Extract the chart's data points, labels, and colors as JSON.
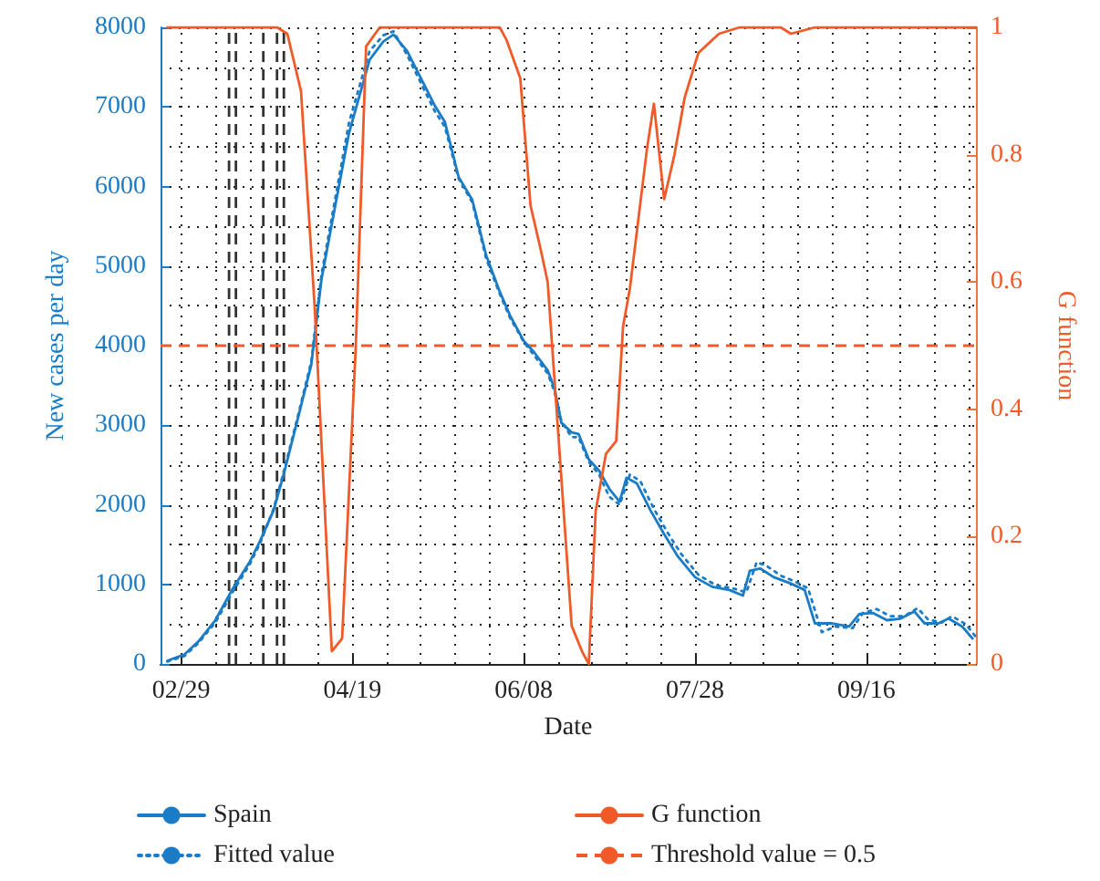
{
  "chart_data": {
    "type": "line",
    "xlabel": "Date",
    "ylabel": "New cases per day",
    "y2label": "G function",
    "xlim": [
      "--02-23",
      "--10-18"
    ],
    "xticks": [
      {
        "value": "--02-29",
        "label": "02/29"
      },
      {
        "value": "--04-19",
        "label": "04/19"
      },
      {
        "value": "--06-08",
        "label": "06/08"
      },
      {
        "value": "--07-28",
        "label": "07/28"
      },
      {
        "value": "--09-16",
        "label": "09/16"
      }
    ],
    "ylim": [
      0,
      8000
    ],
    "yticks": [
      0,
      1000,
      2000,
      3000,
      4000,
      5000,
      6000,
      7000,
      8000
    ],
    "y2lim": [
      0,
      1
    ],
    "y2ticks": [
      0,
      0.2,
      0.4,
      0.6,
      0.8,
      1
    ],
    "grid": true,
    "legend": "bottom",
    "marker": "none",
    "series": [
      {
        "name": "Spain",
        "color": "#1a7cc7",
        "line_style": "solid",
        "x": [
          "--02-25",
          "--03-01",
          "--03-05",
          "--03-10",
          "--03-15",
          "--03-20",
          "--03-23",
          "--03-27",
          "--03-30",
          "--04-03",
          "--04-07",
          "--04-10",
          "--04-14",
          "--04-18",
          "--04-21",
          "--04-24",
          "--04-28",
          "--05-01",
          "--05-05",
          "--05-09",
          "--05-13",
          "--05-16",
          "--05-20",
          "--05-24",
          "--05-28",
          "--06-01",
          "--06-04",
          "--06-08",
          "--06-11",
          "--06-15",
          "--06-17",
          "--06-19",
          "--06-22",
          "--06-24",
          "--06-27",
          "--06-30",
          "--07-03",
          "--07-06",
          "--07-08",
          "--07-11",
          "--07-15",
          "--07-19",
          "--07-23",
          "--07-28",
          "--08-02",
          "--08-07",
          "--08-11",
          "--08-13",
          "--08-16",
          "--08-20",
          "--08-25",
          "--08-29",
          "--09-01",
          "--09-06",
          "--09-11",
          "--09-14",
          "--09-18",
          "--09-22",
          "--09-26",
          "--09-30",
          "--10-03",
          "--10-07",
          "--10-10",
          "--10-14",
          "--10-17"
        ],
        "values": [
          40,
          120,
          280,
          550,
          940,
          1280,
          1540,
          1930,
          2390,
          3070,
          3760,
          4840,
          5760,
          6670,
          7130,
          7590,
          7820,
          7910,
          7700,
          7360,
          7020,
          6810,
          6120,
          5830,
          5140,
          4680,
          4380,
          4060,
          3920,
          3690,
          3460,
          3030,
          2910,
          2890,
          2570,
          2430,
          2200,
          2040,
          2340,
          2270,
          1930,
          1630,
          1350,
          1090,
          970,
          930,
          860,
          1170,
          1200,
          1090,
          1010,
          930,
          510,
          510,
          470,
          630,
          640,
          550,
          570,
          660,
          510,
          510,
          570,
          470,
          320
        ]
      },
      {
        "name": "Fitted value",
        "color": "#1a7cc7",
        "line_style": "dotted",
        "x": [
          "--02-25",
          "--03-01",
          "--03-05",
          "--03-10",
          "--03-15",
          "--03-20",
          "--03-23",
          "--03-27",
          "--03-30",
          "--04-03",
          "--04-07",
          "--04-10",
          "--04-14",
          "--04-18",
          "--04-21",
          "--04-24",
          "--04-28",
          "--05-01",
          "--05-05",
          "--05-09",
          "--05-13",
          "--05-16",
          "--05-20",
          "--05-24",
          "--05-28",
          "--06-01",
          "--06-04",
          "--06-08",
          "--06-11",
          "--06-15",
          "--06-17",
          "--06-19",
          "--06-22",
          "--06-24",
          "--06-27",
          "--06-30",
          "--07-03",
          "--07-06",
          "--07-09",
          "--07-12",
          "--07-16",
          "--07-20",
          "--07-24",
          "--07-29",
          "--08-03",
          "--08-08",
          "--08-12",
          "--08-15",
          "--08-18",
          "--08-22",
          "--08-26",
          "--08-30",
          "--09-03",
          "--09-07",
          "--09-12",
          "--09-15",
          "--09-19",
          "--09-23",
          "--09-27",
          "--10-01",
          "--10-04",
          "--10-08",
          "--10-11",
          "--10-15",
          "--10-18"
        ],
        "values": [
          30,
          100,
          260,
          520,
          900,
          1250,
          1510,
          1950,
          2420,
          3100,
          3800,
          4900,
          5850,
          6800,
          7250,
          7700,
          7900,
          7950,
          7650,
          7300,
          6950,
          6750,
          6100,
          5800,
          5100,
          4650,
          4350,
          4050,
          3880,
          3650,
          3420,
          3050,
          2850,
          2850,
          2540,
          2380,
          2100,
          2000,
          2380,
          2300,
          1950,
          1650,
          1380,
          1120,
          990,
          950,
          900,
          1280,
          1230,
          1110,
          1040,
          950,
          400,
          470,
          450,
          640,
          690,
          600,
          600,
          700,
          560,
          520,
          600,
          500,
          340
        ]
      },
      {
        "name": "G function",
        "color": "#f05a28",
        "line_style": "solid",
        "axis": "y2",
        "x": [
          "--02-25",
          "--03-28",
          "--03-31",
          "--04-04",
          "--04-06",
          "--04-08",
          "--04-13",
          "--04-16",
          "--04-20",
          "--04-23",
          "--04-27",
          "--06-01",
          "--06-03",
          "--06-07",
          "--06-10",
          "--06-13",
          "--06-15",
          "--06-22",
          "--06-25",
          "--06-27",
          "--06-29",
          "--07-02",
          "--07-05",
          "--07-07",
          "--07-09",
          "--07-14",
          "--07-16",
          "--07-19",
          "--07-22",
          "--07-25",
          "--07-29",
          "--08-04",
          "--08-10",
          "--08-22",
          "--08-25",
          "--09-01",
          "--10-18"
        ],
        "values": [
          1,
          1,
          0.99,
          0.9,
          0.73,
          0.56,
          0.02,
          0.04,
          0.5,
          0.97,
          1,
          1,
          0.98,
          0.92,
          0.72,
          0.65,
          0.6,
          0.06,
          0.02,
          0,
          0.24,
          0.33,
          0.35,
          0.53,
          0.59,
          0.81,
          0.88,
          0.73,
          0.8,
          0.89,
          0.96,
          0.99,
          1,
          1,
          0.99,
          1,
          1
        ]
      }
    ],
    "ref_lines": [
      {
        "axis": "y2",
        "value": 0.5,
        "label": "Threshold value = 0.5",
        "color": "#f05a28",
        "line_style": "dashed"
      },
      {
        "axis": "x",
        "value": "--03-14",
        "color": "#333333",
        "line_style": "dashed"
      },
      {
        "axis": "x",
        "value": "--03-16",
        "color": "#333333",
        "line_style": "dashed"
      },
      {
        "axis": "x",
        "value": "--03-24",
        "color": "#333333",
        "line_style": "dashed"
      },
      {
        "axis": "x",
        "value": "--03-28",
        "color": "#333333",
        "line_style": "dashed"
      },
      {
        "axis": "x",
        "value": "--03-30",
        "color": "#333333",
        "line_style": "dashed"
      }
    ]
  }
}
